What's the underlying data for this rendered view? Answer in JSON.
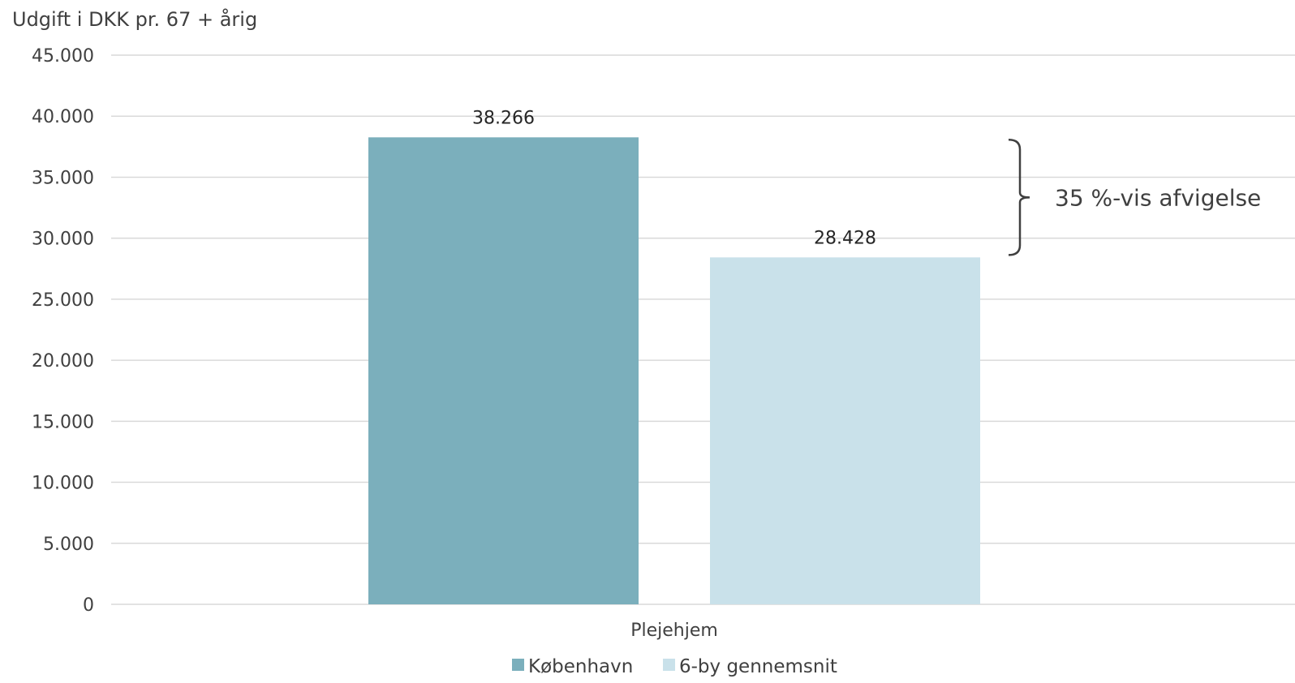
{
  "chart_data": {
    "type": "bar",
    "title": "",
    "ylabel": "Udgift i DKK pr. 67 + årig",
    "xlabel": "",
    "categories": [
      "Plejehjem"
    ],
    "series": [
      {
        "name": "København",
        "values": [
          38266
        ],
        "labels": [
          "38.266"
        ],
        "color": "#7bafbc"
      },
      {
        "name": "6-by gennemsnit",
        "values": [
          28428
        ],
        "labels": [
          "28.428"
        ],
        "color": "#c9e1ea"
      }
    ],
    "ylim": [
      0,
      45000
    ],
    "yticks": [
      0,
      5000,
      10000,
      15000,
      20000,
      25000,
      30000,
      35000,
      40000,
      45000
    ],
    "ytick_labels": [
      "0",
      "5.000",
      "10.000",
      "15.000",
      "20.000",
      "25.000",
      "30.000",
      "35.000",
      "40.000",
      "45.000"
    ],
    "grid": true,
    "legend_position": "bottom",
    "annotation": {
      "text": "35 %-vis afvigelse",
      "from_value": 38266,
      "to_value": 28428
    }
  }
}
